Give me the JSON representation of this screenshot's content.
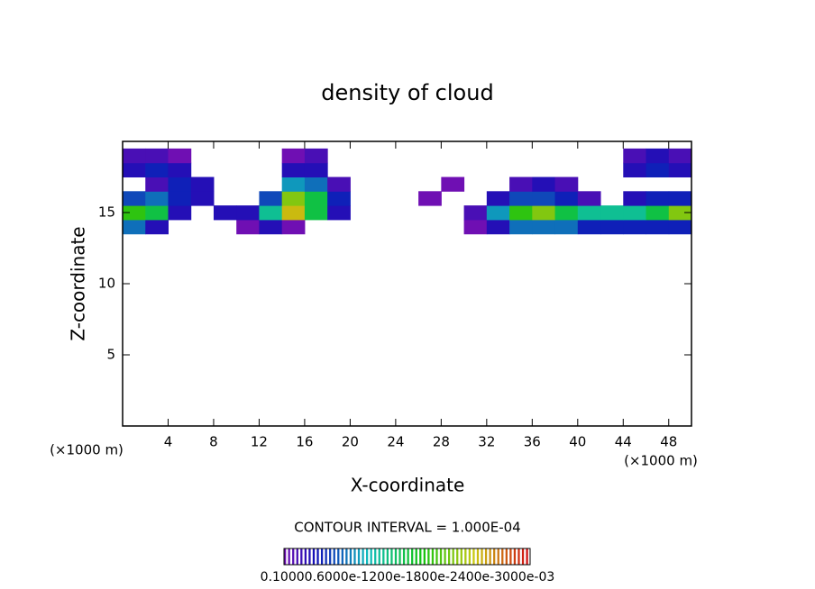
{
  "chart_data": {
    "type": "contour",
    "title": "density of cloud",
    "xlabel": "X-coordinate",
    "ylabel": "Z-coordinate",
    "x_unit_left": "(×1000 m)",
    "x_unit_right": "(×1000 m)",
    "contour_interval": "CONTOUR INTERVAL = 1.000E-04",
    "colorbar_label": "0.10000.6000e-1200e-1800e-2400e-3000e-03",
    "clim": [
      0.0001,
      0.0003
    ],
    "xlim": [
      0,
      50
    ],
    "ylim": [
      0,
      20
    ],
    "xticks": [
      4,
      8,
      12,
      16,
      20,
      24,
      28,
      32,
      36,
      40,
      44,
      48
    ],
    "yticks": [
      5,
      10,
      15
    ],
    "x": [
      1,
      3,
      5,
      7,
      9,
      11,
      13,
      15,
      17,
      19,
      21,
      23,
      25,
      27,
      29,
      31,
      33,
      35,
      37,
      39,
      41,
      43,
      45,
      47,
      49
    ],
    "z": [
      14,
      15,
      16,
      17,
      18,
      19
    ],
    "values": [
      [
        0.00015,
        0.00012,
        null,
        null,
        null,
        0.0001,
        0.00012,
        0.0001,
        null,
        null,
        null,
        null,
        null,
        null,
        null,
        0.0001,
        0.00012,
        0.00015,
        0.00015,
        0.00015,
        0.00013,
        0.00013,
        0.00013,
        0.00013,
        0.00013
      ],
      [
        0.00022,
        0.0002,
        0.00012,
        null,
        0.00012,
        0.00012,
        0.00018,
        0.00026,
        0.0002,
        0.00012,
        null,
        null,
        null,
        null,
        null,
        0.00011,
        0.00016,
        0.00022,
        0.00024,
        0.0002,
        0.00018,
        0.00018,
        0.00018,
        0.0002,
        0.00024
      ],
      [
        0.00014,
        0.00015,
        0.00013,
        0.00012,
        null,
        null,
        0.00014,
        0.00024,
        0.0002,
        0.00013,
        null,
        null,
        null,
        0.0001,
        null,
        null,
        0.00012,
        0.00014,
        0.00014,
        0.00013,
        0.00011,
        null,
        0.00012,
        0.00013,
        0.00013
      ],
      [
        null,
        0.00011,
        0.00013,
        0.00012,
        null,
        null,
        null,
        0.00016,
        0.00015,
        0.00011,
        null,
        null,
        null,
        null,
        0.0001,
        null,
        null,
        0.00011,
        0.00012,
        0.00011,
        null,
        null,
        null,
        null,
        null
      ],
      [
        0.00012,
        0.00013,
        0.00012,
        null,
        null,
        null,
        null,
        0.00012,
        0.00012,
        null,
        null,
        null,
        null,
        null,
        null,
        null,
        null,
        null,
        null,
        null,
        null,
        null,
        0.00012,
        0.00013,
        0.00012
      ],
      [
        0.00011,
        0.00011,
        0.0001,
        null,
        null,
        null,
        null,
        0.0001,
        0.00011,
        null,
        null,
        null,
        null,
        null,
        null,
        null,
        null,
        null,
        null,
        null,
        null,
        null,
        0.00011,
        0.00012,
        0.00011
      ]
    ]
  }
}
